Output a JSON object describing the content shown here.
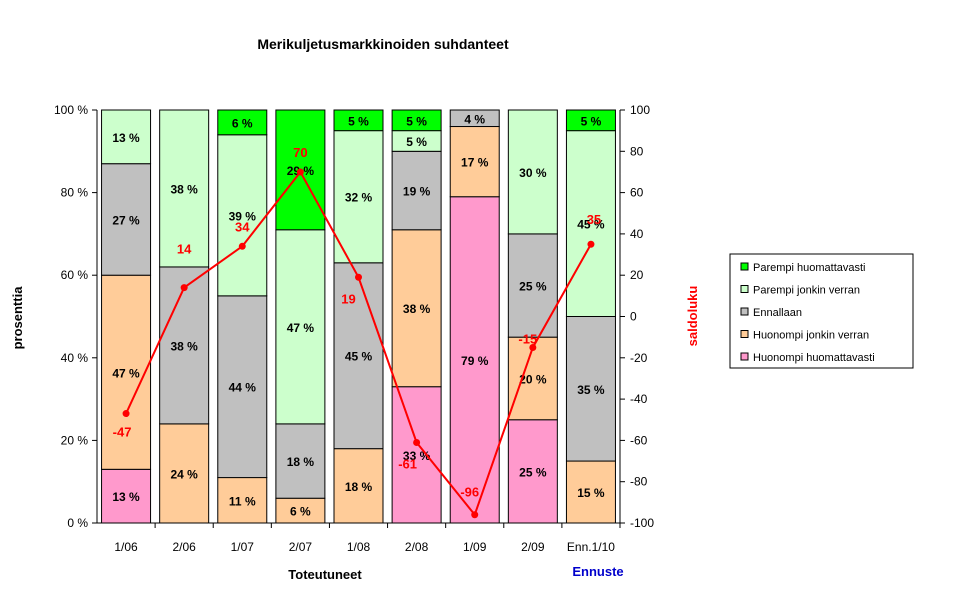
{
  "chart_data": {
    "type": "bar",
    "stacked": true,
    "percent_stacked": true,
    "title": "Merikuljetusmarkkinoiden suhdanteet",
    "xlabel": "Toteutuneet",
    "xlabel_forecast": "Ennuste",
    "ylabel": "prosenttia",
    "y2label": "saldoluku",
    "ylim": [
      0,
      100
    ],
    "y2lim": [
      -100,
      100
    ],
    "yticks": [
      "0 %",
      "20 %",
      "40 %",
      "60 %",
      "80 %",
      "100 %"
    ],
    "y2ticks": [
      "-100",
      "-80",
      "-60",
      "-40",
      "-20",
      "0",
      "20",
      "40",
      "60",
      "80",
      "100"
    ],
    "categories": [
      "1/06",
      "2/06",
      "1/07",
      "2/07",
      "1/08",
      "2/08",
      "1/09",
      "2/09",
      "Enn.1/10"
    ],
    "legend_position": "right",
    "series": [
      {
        "name": "Huonompi huomattavasti",
        "color": "#ff99cc",
        "values": [
          13,
          0,
          0,
          0,
          0,
          33,
          79,
          25,
          0
        ],
        "labels": [
          "13 %",
          "",
          "",
          "",
          "",
          "33 %",
          "79 %",
          "25 %",
          ""
        ]
      },
      {
        "name": "Huonompi jonkin verran",
        "color": "#ffcc99",
        "values": [
          47,
          24,
          11,
          6,
          18,
          38,
          17,
          20,
          15
        ],
        "labels": [
          "47 %",
          "24 %",
          "11 %",
          "6 %",
          "18 %",
          "38 %",
          "17 %",
          "20 %",
          "15 %"
        ]
      },
      {
        "name": "Ennallaan",
        "color": "#c0c0c0",
        "values": [
          27,
          38,
          44,
          18,
          45,
          19,
          4,
          25,
          35
        ],
        "labels": [
          "27 %",
          "38 %",
          "44 %",
          "18 %",
          "45 %",
          "19 %",
          "4 %",
          "25 %",
          "35 %"
        ]
      },
      {
        "name": "Parempi jonkin verran",
        "color": "#ccffcc",
        "values": [
          13,
          38,
          39,
          47,
          32,
          5,
          0,
          30,
          45
        ],
        "labels": [
          "13 %",
          "38 %",
          "39 %",
          "47 %",
          "32 %",
          "5 %",
          "",
          "30 %",
          "45 %"
        ]
      },
      {
        "name": "Parempi huomattavasti",
        "color": "#00ff00",
        "values": [
          0,
          0,
          6,
          29,
          5,
          5,
          0,
          0,
          5
        ],
        "labels": [
          "",
          "",
          "6 %",
          "29 %",
          "5 %",
          "5 %",
          "",
          "",
          "5 %"
        ]
      }
    ],
    "balance": {
      "name": "saldoluku",
      "color": "#ff0000",
      "axis": "right",
      "values": [
        -47,
        14,
        34,
        70,
        19,
        -61,
        -96,
        -15,
        35
      ],
      "labels": [
        "-47",
        "14",
        "34",
        "70",
        "19",
        "-61",
        "-96",
        "-15",
        "35"
      ]
    },
    "legend_order": [
      "Parempi huomattavasti",
      "Parempi jonkin verran",
      "Ennallaan",
      "Huonompi jonkin verran",
      "Huonompi huomattavasti"
    ]
  }
}
